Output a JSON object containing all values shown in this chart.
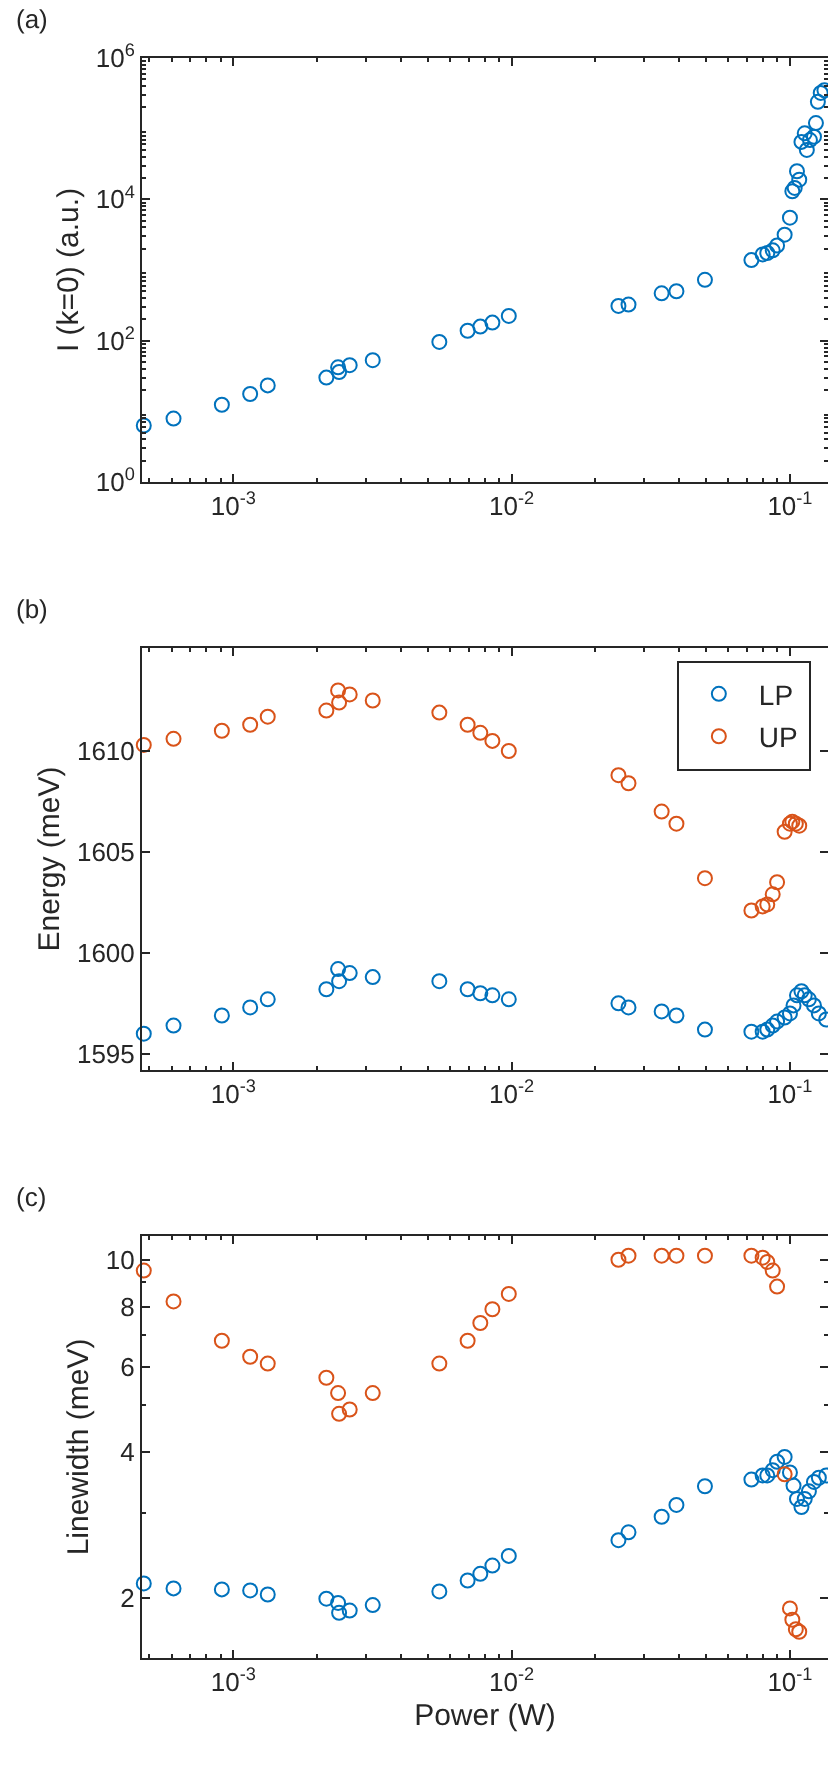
{
  "chart_data": [
    {
      "type": "scatter",
      "title": "(a)",
      "ylabel": "I (k=0) (a.u.)",
      "log": "xy",
      "marker": "circle",
      "grid": false,
      "legend": false,
      "xlim": [
        0.00047,
        0.137
      ],
      "xticks": [
        {
          "value": 0.001,
          "label": "10$^{-3}$"
        },
        {
          "value": 0.01,
          "label": "10$^{-2}$"
        },
        {
          "value": 0.1,
          "label": "10$^{-1}$"
        }
      ],
      "ylim": [
        1,
        1000000
      ],
      "yticks": [
        {
          "value": 1,
          "label": "10$^{0}$"
        },
        {
          "value": 100,
          "label": "10$^{2}$"
        },
        {
          "value": 10000,
          "label": "10$^{4}$"
        },
        {
          "value": 1000000,
          "label": "10$^{6}$"
        }
      ],
      "series": [
        {
          "color": "#0072bd",
          "x": [
            0.000477,
            0.00061,
            0.00091,
            0.00115,
            0.00133,
            0.00216,
            0.00238,
            0.0024,
            0.00262,
            0.00317,
            0.0055,
            0.00695,
            0.00772,
            0.00853,
            0.00977,
            0.0242,
            0.0263,
            0.0346,
            0.0391,
            0.0495,
            0.0727,
            0.0798,
            0.0829,
            0.0867,
            0.0899,
            0.0957,
            0.1,
            0.102,
            0.104,
            0.106,
            0.108,
            0.11,
            0.113,
            0.115,
            0.118,
            0.122,
            0.124,
            0.126,
            0.129,
            0.133
          ],
          "values": [
            6.3,
            7.9,
            12.4,
            17.6,
            23.3,
            30,
            42,
            36,
            45,
            53,
            96,
            138,
            158,
            180,
            224,
            310,
            324,
            468,
            500,
            725,
            1380,
            1660,
            1740,
            1900,
            2220,
            3160,
            5500,
            13000,
            14500,
            25000,
            19000,
            65000,
            86000,
            50000,
            69000,
            77000,
            120000,
            240000,
            320000,
            350000
          ]
        }
      ]
    },
    {
      "type": "scatter",
      "title": "(b)",
      "ylabel": "Energy (meV)",
      "log": "x",
      "marker": "circle",
      "grid": false,
      "legend": "top right",
      "xlim": [
        0.00047,
        0.137
      ],
      "xticks": [
        {
          "value": 0.001,
          "label": "10$^{-3}$"
        },
        {
          "value": 0.01,
          "label": "10$^{-2}$"
        },
        {
          "value": 0.1,
          "label": "10$^{-1}$"
        }
      ],
      "ylim": [
        1594.2,
        1615.1
      ],
      "yticks": [
        1595,
        1600,
        1605,
        1610
      ],
      "series": [
        {
          "name": "LP",
          "color": "#0072bd",
          "x": [
            0.000477,
            0.00061,
            0.00091,
            0.00115,
            0.00133,
            0.00216,
            0.00238,
            0.0024,
            0.00262,
            0.00317,
            0.0055,
            0.00695,
            0.00772,
            0.00853,
            0.00977,
            0.0242,
            0.0263,
            0.0346,
            0.0391,
            0.0495,
            0.0727,
            0.0798,
            0.0829,
            0.0867,
            0.0899,
            0.0957,
            0.1,
            0.103,
            0.106,
            0.11,
            0.113,
            0.117,
            0.122,
            0.127,
            0.135
          ],
          "values": [
            1596.0,
            1596.4,
            1596.9,
            1597.3,
            1597.7,
            1598.2,
            1599.2,
            1598.6,
            1599.0,
            1598.8,
            1598.6,
            1598.2,
            1598.0,
            1597.9,
            1597.7,
            1597.5,
            1597.3,
            1597.1,
            1596.9,
            1596.2,
            1596.1,
            1596.1,
            1596.2,
            1596.4,
            1596.6,
            1596.8,
            1597.0,
            1597.4,
            1597.9,
            1598.1,
            1597.9,
            1597.7,
            1597.4,
            1597.0,
            1596.7
          ]
        },
        {
          "name": "UP",
          "color": "#d95319",
          "x": [
            0.000477,
            0.00061,
            0.00091,
            0.00115,
            0.00133,
            0.00216,
            0.00238,
            0.0024,
            0.00262,
            0.00317,
            0.0055,
            0.00695,
            0.00772,
            0.00853,
            0.00977,
            0.0242,
            0.0263,
            0.0346,
            0.0391,
            0.0495,
            0.0727,
            0.0798,
            0.0829,
            0.0867,
            0.0899,
            0.0957,
            0.1,
            0.102,
            0.105,
            0.108
          ],
          "values": [
            1610.3,
            1610.6,
            1611.0,
            1611.3,
            1611.7,
            1612.0,
            1613.0,
            1612.4,
            1612.8,
            1612.5,
            1611.9,
            1611.3,
            1610.9,
            1610.5,
            1610.0,
            1608.8,
            1608.4,
            1607.0,
            1606.4,
            1603.7,
            1602.1,
            1602.3,
            1602.4,
            1602.9,
            1603.5,
            1606.0,
            1606.4,
            1606.5,
            1606.4,
            1606.3
          ]
        }
      ]
    },
    {
      "type": "scatter",
      "title": "(c)",
      "xlabel": "Power (W)",
      "ylabel": "Linewidth (meV)",
      "log": "xy",
      "marker": "circle",
      "grid": false,
      "legend": false,
      "xlim": [
        0.00047,
        0.137
      ],
      "xticks": [
        {
          "value": 0.001,
          "label": "10$^{-3}$"
        },
        {
          "value": 0.01,
          "label": "10$^{-2}$"
        },
        {
          "value": 0.1,
          "label": "10$^{-1}$"
        }
      ],
      "ylim": [
        1.5,
        11.2
      ],
      "yticks": [
        2,
        4,
        6,
        8,
        10
      ],
      "series": [
        {
          "color": "#0072bd",
          "x": [
            0.000477,
            0.00061,
            0.00091,
            0.00115,
            0.00133,
            0.00216,
            0.00238,
            0.0024,
            0.00262,
            0.00317,
            0.0055,
            0.00695,
            0.00772,
            0.00853,
            0.00977,
            0.0242,
            0.0263,
            0.0346,
            0.0391,
            0.0495,
            0.0727,
            0.0798,
            0.0829,
            0.0867,
            0.0899,
            0.0957,
            0.1,
            0.103,
            0.106,
            0.11,
            0.113,
            0.117,
            0.122,
            0.127,
            0.135
          ],
          "values": [
            2.14,
            2.09,
            2.08,
            2.07,
            2.03,
            1.99,
            1.95,
            1.86,
            1.88,
            1.93,
            2.06,
            2.17,
            2.24,
            2.33,
            2.44,
            2.63,
            2.73,
            2.94,
            3.11,
            3.4,
            3.51,
            3.58,
            3.58,
            3.67,
            3.82,
            3.91,
            3.63,
            3.41,
            3.2,
            3.08,
            3.2,
            3.32,
            3.47,
            3.54,
            3.58
          ]
        },
        {
          "color": "#d95319",
          "x": [
            0.000477,
            0.00061,
            0.00091,
            0.00115,
            0.00133,
            0.00216,
            0.00238,
            0.0024,
            0.00262,
            0.00317,
            0.0055,
            0.00695,
            0.00772,
            0.00853,
            0.00977,
            0.0242,
            0.0263,
            0.0346,
            0.0391,
            0.0495,
            0.0727,
            0.0798,
            0.0829,
            0.0867,
            0.0899,
            0.0957,
            0.1,
            0.102,
            0.105,
            0.108
          ],
          "values": [
            9.5,
            8.2,
            6.8,
            6.3,
            6.1,
            5.7,
            5.3,
            4.8,
            4.9,
            5.3,
            6.1,
            6.8,
            7.4,
            7.9,
            8.5,
            10.0,
            10.2,
            10.2,
            10.2,
            10.2,
            10.2,
            10.1,
            9.9,
            9.5,
            8.8,
            3.6,
            1.9,
            1.8,
            1.72,
            1.7
          ]
        }
      ]
    }
  ]
}
